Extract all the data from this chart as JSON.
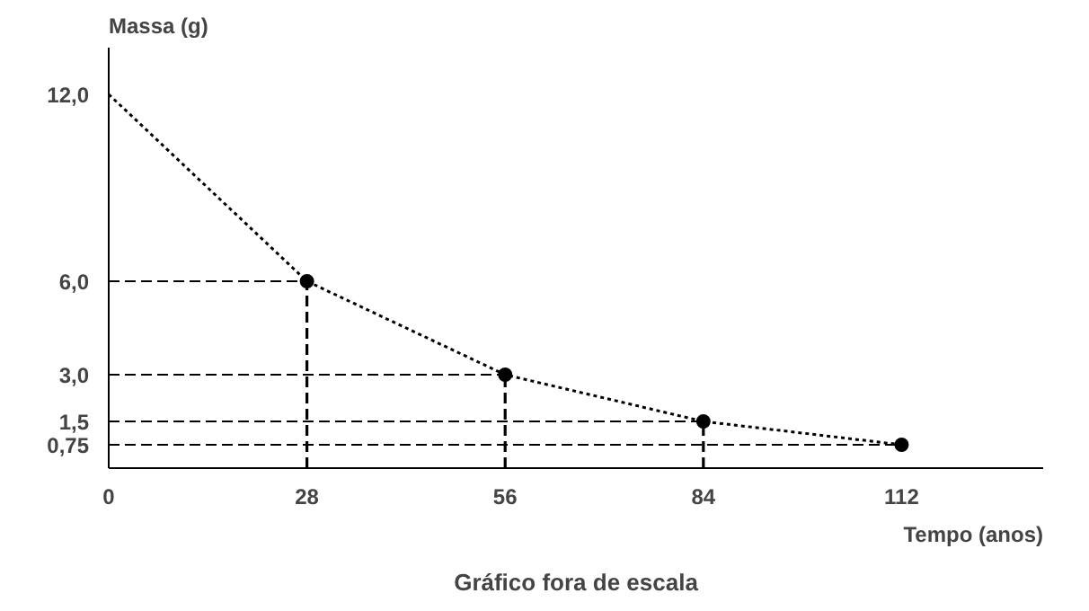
{
  "chart_data": {
    "type": "line",
    "ylabel": "Massa (g)",
    "xlabel": "Tempo (anos)",
    "annotations": [
      "Gráfico fora de escala"
    ],
    "series": [
      {
        "color": "#000000",
        "line_style": "dotted",
        "marker": "none",
        "x": [
          0,
          28,
          56,
          84,
          112
        ],
        "values": [
          12,
          6,
          3,
          1.5,
          0.75
        ]
      },
      {
        "type": "scatter",
        "color": "#000000",
        "marker": "circle",
        "x": [
          28,
          56,
          84,
          112
        ],
        "values": [
          6,
          3,
          1.5,
          0.75
        ]
      }
    ],
    "xlim": [
      0,
      132
    ],
    "ylim": [
      0,
      13.5
    ],
    "xticks": [
      0,
      28,
      56,
      84,
      112
    ],
    "yticks": [
      {
        "value": 0.75,
        "label": "0,75"
      },
      {
        "value": 1.5,
        "label": "1,5"
      },
      {
        "value": 3,
        "label": "3,0"
      },
      {
        "value": 6,
        "label": "6,0"
      },
      {
        "value": 12,
        "label": "12,0"
      }
    ],
    "ref_lines": [
      {
        "axis": "y",
        "value": 6,
        "line_style": "dashed",
        "color": "#000000"
      },
      {
        "axis": "y",
        "value": 3,
        "line_style": "dashed",
        "color": "#000000"
      },
      {
        "axis": "y",
        "value": 1.5,
        "line_style": "dashed",
        "color": "#000000"
      },
      {
        "axis": "y",
        "value": 0.75,
        "line_style": "dashed",
        "color": "#000000"
      },
      {
        "axis": "x",
        "value": 28,
        "line_style": "dashed",
        "color": "#000000"
      },
      {
        "axis": "x",
        "value": 56,
        "line_style": "dashed",
        "color": "#000000"
      },
      {
        "axis": "x",
        "value": 84,
        "line_style": "dashed",
        "color": "#000000"
      }
    ],
    "grid": false
  }
}
